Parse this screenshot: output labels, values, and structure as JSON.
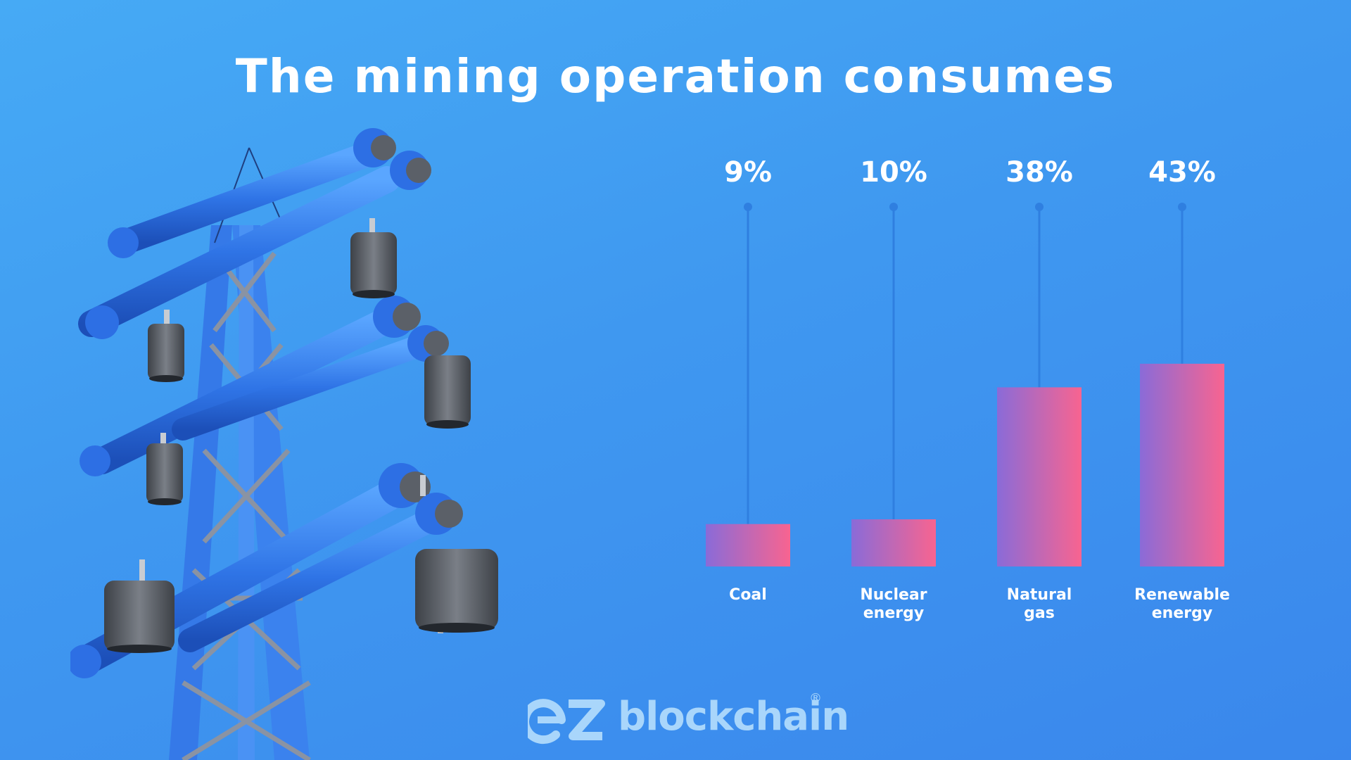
{
  "title": "The mining operation consumes",
  "chart_data": {
    "type": "bar",
    "categories": [
      [
        "Coal"
      ],
      [
        "Nuclear",
        "energy"
      ],
      [
        "Natural",
        "gas"
      ],
      [
        "Renewable",
        "energy"
      ]
    ],
    "values": [
      9,
      10,
      38,
      43
    ],
    "value_labels": [
      "9%",
      "10%",
      "38%",
      "43%"
    ],
    "title": "The mining operation consumes",
    "xlabel": "",
    "ylabel": "",
    "grid": false
  },
  "logo": {
    "text": "blockchain",
    "mark": "ez",
    "registered": "®"
  },
  "colors": {
    "bar_left": "#8a6bd8",
    "bar_right": "#f86490",
    "stem": "#2f7fe0",
    "tower_blue": "#2f6fe0",
    "insulator_gray": "#5b6068",
    "logo": "#a9d6fb"
  },
  "illustration": "power-transmission-tower-icon"
}
